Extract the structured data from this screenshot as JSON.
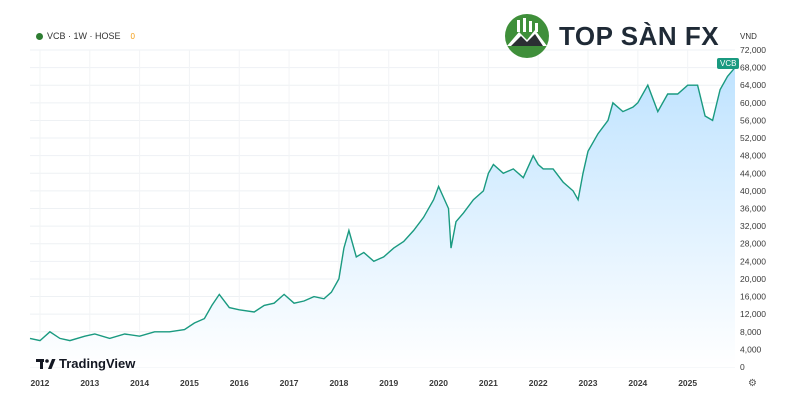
{
  "header": {
    "symbol_line": "VCB · 1W · HOSE",
    "badge": "0"
  },
  "brand": {
    "name": "TOP SÀN FX",
    "logo_icon": "mountain-chart-logo-icon"
  },
  "watermark": {
    "name": "TradingView",
    "logo_icon": "tradingview-logo-icon"
  },
  "unit_label": "VND",
  "last_price_label": "VCB",
  "colors": {
    "line": "#1a9a80",
    "fill_top": "#bfe3ff",
    "fill_bottom": "#ffffff"
  },
  "chart_data": {
    "type": "area",
    "title": "",
    "xlabel": "",
    "ylabel": "",
    "x_ticks": [
      "2012",
      "2013",
      "2014",
      "2015",
      "2016",
      "2017",
      "2018",
      "2019",
      "2020",
      "2021",
      "2022",
      "2023",
      "2024",
      "2025"
    ],
    "y_ticks": [
      "72,000",
      "68,000",
      "64,000",
      "60,000",
      "56,000",
      "52,000",
      "48,000",
      "44,000",
      "40,000",
      "36,000",
      "32,000",
      "28,000",
      "24,000",
      "20,000",
      "16,000",
      "12,000",
      "8,000",
      "4,000",
      "0"
    ],
    "ylim": [
      0,
      72000
    ],
    "xlim": [
      2011.8,
      2025.95
    ],
    "grid": true,
    "series": [
      {
        "x": [
          2011.8,
          2012.0,
          2012.2,
          2012.4,
          2012.6,
          2012.9,
          2013.1,
          2013.4,
          2013.7,
          2014.0,
          2014.3,
          2014.6,
          2014.9,
          2015.1,
          2015.3,
          2015.45,
          2015.6,
          2015.8,
          2016.0,
          2016.3,
          2016.5,
          2016.7,
          2016.9,
          2017.1,
          2017.3,
          2017.5,
          2017.7,
          2017.85,
          2018.0,
          2018.1,
          2018.2,
          2018.35,
          2018.5,
          2018.7,
          2018.9,
          2019.1,
          2019.3,
          2019.5,
          2019.7,
          2019.9,
          2020.0,
          2020.2,
          2020.25,
          2020.35,
          2020.5,
          2020.7,
          2020.9,
          2021.0,
          2021.1,
          2021.3,
          2021.5,
          2021.7,
          2021.9,
          2022.0,
          2022.1,
          2022.3,
          2022.5,
          2022.7,
          2022.8,
          2022.9,
          2023.0,
          2023.2,
          2023.4,
          2023.5,
          2023.7,
          2023.9,
          2024.0,
          2024.2,
          2024.4,
          2024.6,
          2024.8,
          2025.0,
          2025.2,
          2025.35,
          2025.5,
          2025.65,
          2025.8,
          2025.95
        ],
        "y": [
          6500,
          6000,
          8000,
          6500,
          6000,
          7000,
          7500,
          6500,
          7500,
          7000,
          8000,
          8000,
          8500,
          10000,
          11000,
          14000,
          16500,
          13500,
          13000,
          12500,
          14000,
          14500,
          16500,
          14500,
          15000,
          16000,
          15500,
          17000,
          20000,
          27000,
          31000,
          25000,
          26000,
          24000,
          25000,
          27000,
          28500,
          31000,
          34000,
          38000,
          41000,
          36000,
          27000,
          33000,
          35000,
          38000,
          40000,
          44000,
          46000,
          44000,
          45000,
          43000,
          48000,
          46000,
          45000,
          45000,
          42000,
          40000,
          38000,
          44000,
          49000,
          53000,
          56000,
          60000,
          58000,
          59000,
          60000,
          64000,
          58000,
          62000,
          62000,
          64000,
          64000,
          57000,
          56000,
          63000,
          66000,
          68000
        ]
      }
    ]
  }
}
